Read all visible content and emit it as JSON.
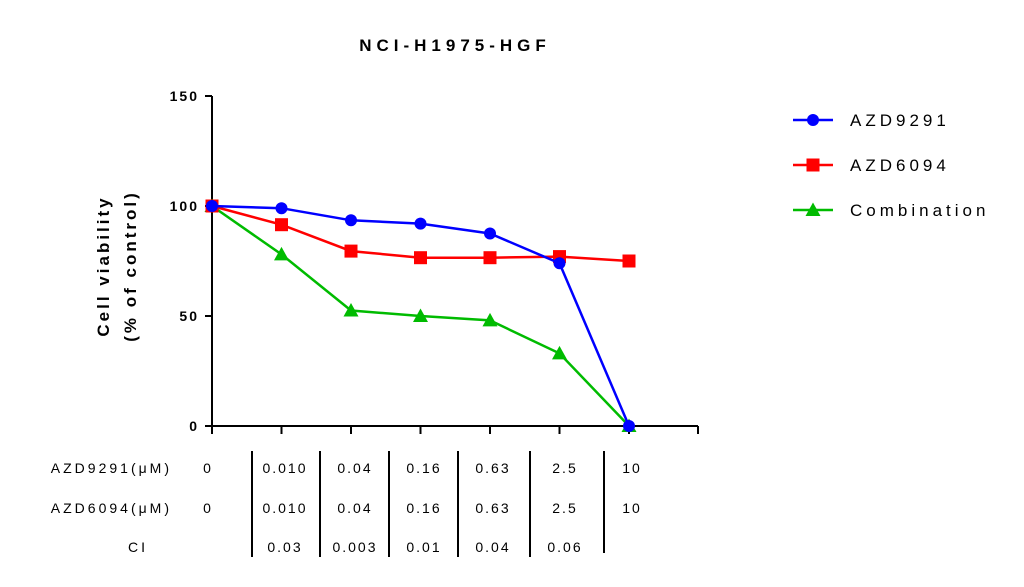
{
  "chart_data": {
    "type": "line",
    "title": "NCI-H1975-HGF",
    "ylabel_lines": [
      "Cell viability",
      "(% of control)"
    ],
    "ylim": [
      0,
      150
    ],
    "yticks": [
      0,
      50,
      100,
      150
    ],
    "grid": false,
    "legend_position": "right",
    "series": [
      {
        "name": "AZD9291",
        "color": "#0000ff",
        "marker": "circle",
        "values": [
          100,
          99,
          93.5,
          92,
          87.5,
          74,
          0
        ]
      },
      {
        "name": "AZD6094",
        "color": "#ff0000",
        "marker": "square",
        "values": [
          100,
          91.5,
          79.5,
          76.5,
          76.5,
          77,
          75
        ]
      },
      {
        "name": "Combination",
        "color": "#00bb00",
        "marker": "triangle",
        "values": [
          100,
          78,
          52.5,
          50,
          48,
          33,
          0
        ]
      }
    ],
    "table": {
      "rows": [
        {
          "label": "AZD9291(μM)",
          "cells": [
            "0",
            "0.010",
            "0.04",
            "0.16",
            "0.63",
            "2.5",
            "10"
          ]
        },
        {
          "label": "AZD6094(μM)",
          "cells": [
            "0",
            "0.010",
            "0.04",
            "0.16",
            "0.63",
            "2.5",
            "10"
          ]
        },
        {
          "label": "CI",
          "cells": [
            "",
            "0.03",
            "0.003",
            "0.01",
            "0.04",
            "0.06",
            ""
          ]
        }
      ]
    }
  }
}
